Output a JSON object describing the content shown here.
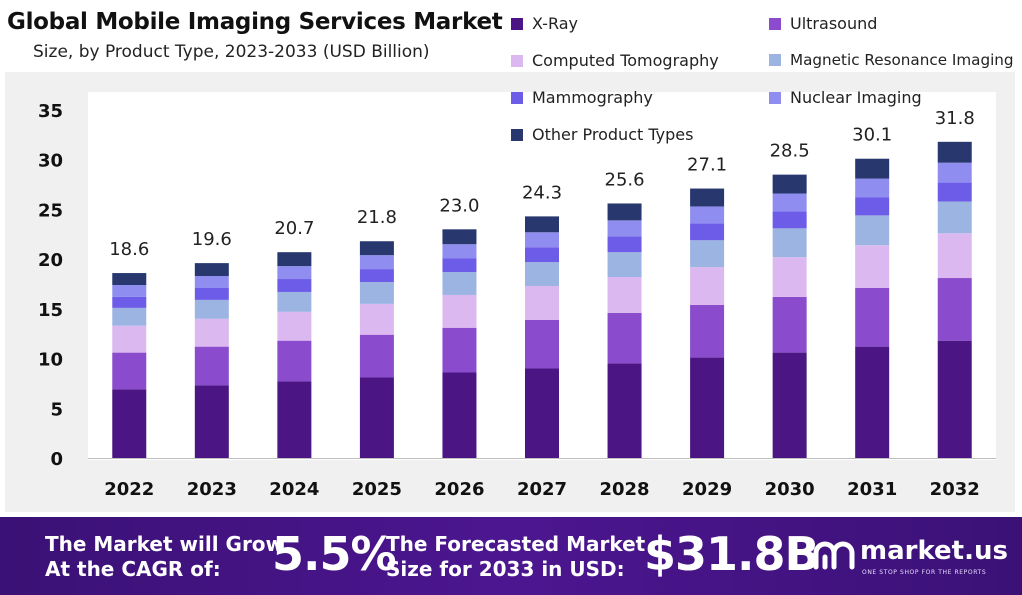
{
  "header": {
    "title": "Global Mobile Imaging Services Market",
    "subtitle": "Size, by Product Type, 2023-2033 (USD Billion)"
  },
  "legend": [
    {
      "label": "X-Ray",
      "color": "#4b1683"
    },
    {
      "label": "Ultrasound",
      "color": "#8a4bcc"
    },
    {
      "label": "Computed Tomography",
      "color": "#dcb8f0"
    },
    {
      "label": "Magnetic Resonance Imaging",
      "color": "#9cb4e2"
    },
    {
      "label": "Mammography",
      "color": "#6d5ce8"
    },
    {
      "label": "Nuclear Imaging",
      "color": "#8f8ef0"
    },
    {
      "label": "Other Product Types",
      "color": "#28386e"
    }
  ],
  "chart_data": {
    "type": "bar",
    "stacked": true,
    "title": "Global Mobile Imaging Services Market",
    "subtitle": "Size, by Product Type, 2023-2033 (USD Billion)",
    "categories": [
      "2022",
      "2023",
      "2024",
      "2025",
      "2026",
      "2027",
      "2028",
      "2029",
      "2030",
      "2031",
      "2032"
    ],
    "totals": [
      "18.6",
      "19.6",
      "20.7",
      "21.8",
      "23.0",
      "24.3",
      "25.6",
      "27.1",
      "28.5",
      "30.1",
      "31.8"
    ],
    "ylim": [
      0,
      35
    ],
    "yticks": [
      0,
      5,
      10,
      15,
      20,
      25,
      30,
      35
    ],
    "grid": false,
    "legend_position": "top-right",
    "series": [
      {
        "name": "X-Ray",
        "color": "#4b1683",
        "values": [
          6.9,
          7.3,
          7.7,
          8.1,
          8.6,
          9.0,
          9.5,
          10.1,
          10.6,
          11.2,
          11.8
        ]
      },
      {
        "name": "Ultrasound",
        "color": "#8a4bcc",
        "values": [
          3.7,
          3.9,
          4.1,
          4.3,
          4.5,
          4.9,
          5.1,
          5.3,
          5.6,
          5.9,
          6.3
        ]
      },
      {
        "name": "Computed Tomography",
        "color": "#dcb8f0",
        "values": [
          2.7,
          2.8,
          2.9,
          3.1,
          3.3,
          3.4,
          3.6,
          3.8,
          4.0,
          4.3,
          4.5
        ]
      },
      {
        "name": "Magnetic Resonance Imaging",
        "color": "#9cb4e2",
        "values": [
          1.8,
          1.9,
          2.0,
          2.2,
          2.3,
          2.4,
          2.5,
          2.7,
          2.9,
          3.0,
          3.2
        ]
      },
      {
        "name": "Mammography",
        "color": "#6d5ce8",
        "values": [
          1.1,
          1.2,
          1.3,
          1.3,
          1.4,
          1.5,
          1.6,
          1.7,
          1.7,
          1.8,
          1.9
        ]
      },
      {
        "name": "Nuclear Imaging",
        "color": "#8f8ef0",
        "values": [
          1.2,
          1.2,
          1.3,
          1.4,
          1.4,
          1.5,
          1.6,
          1.7,
          1.8,
          1.9,
          2.0
        ]
      },
      {
        "name": "Other Product Types",
        "color": "#28386e",
        "values": [
          1.2,
          1.3,
          1.4,
          1.4,
          1.5,
          1.6,
          1.7,
          1.8,
          1.9,
          2.0,
          2.1
        ]
      }
    ]
  },
  "footer": {
    "cagr_line1": "The Market will Grow",
    "cagr_line2": "At the CAGR of:",
    "cagr_value": "5.5%",
    "forecast_line1": "The Forecasted Market",
    "forecast_line2": "Size for 2033 in USD:",
    "forecast_value": "$31.8B",
    "brand_name": "market.us",
    "brand_tagline": "ONE STOP SHOP FOR THE REPORTS"
  }
}
